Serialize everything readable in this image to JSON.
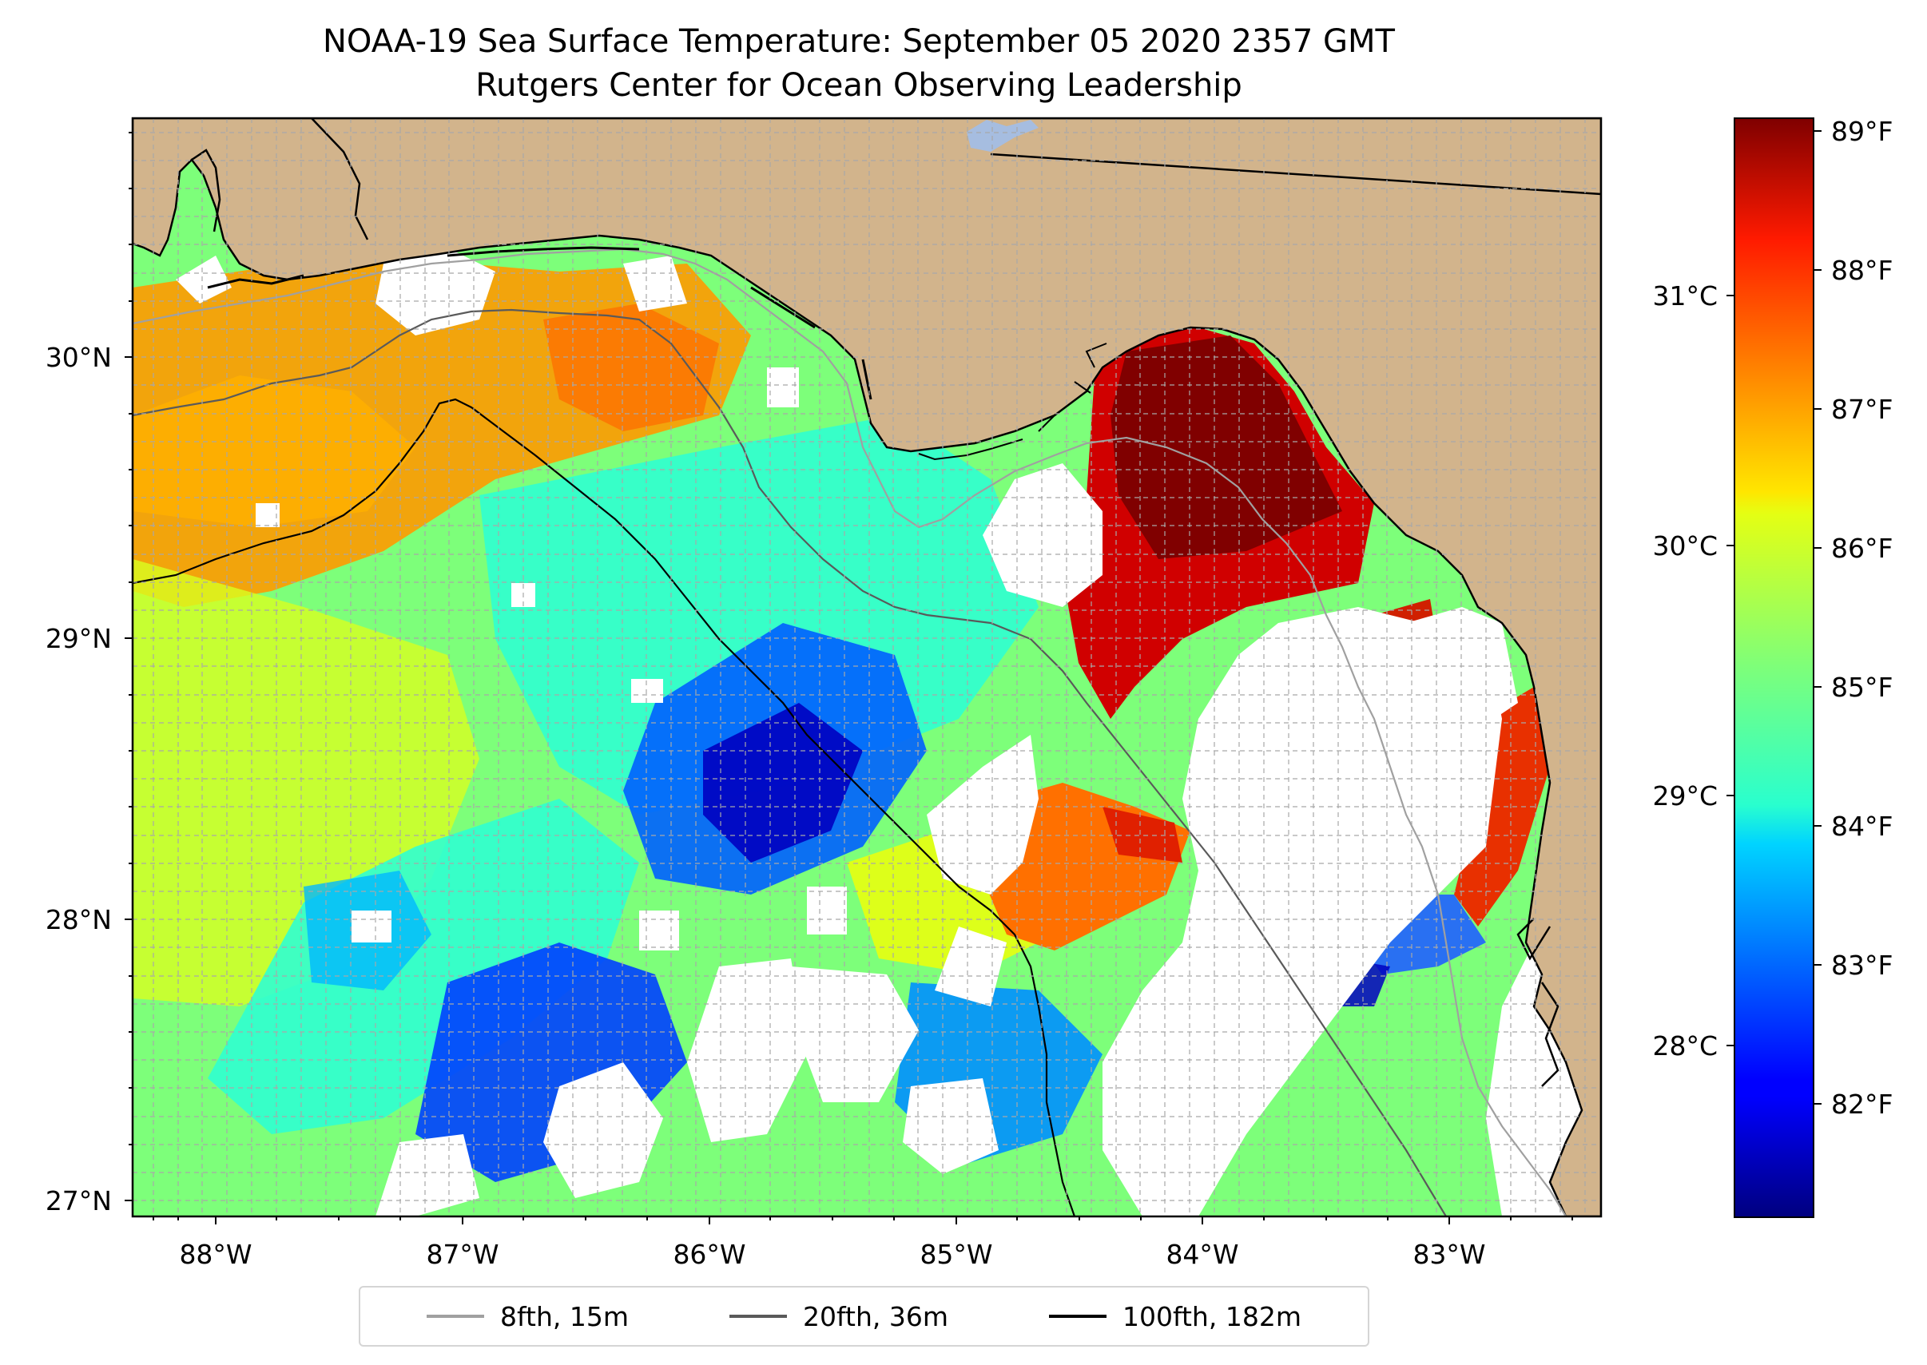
{
  "title": {
    "line1": "NOAA-19 Sea Surface Temperature: September 05 2020 2357 GMT",
    "line2": "Rutgers Center for Ocean Observing Leadership"
  },
  "map": {
    "lon_range": [
      -88.33,
      -82.38
    ],
    "lat_range": [
      26.95,
      30.86
    ],
    "lat_ticks": [
      "27°N",
      "28°N",
      "29°N",
      "30°N"
    ],
    "lon_ticks": [
      "88°W",
      "87°W",
      "86°W",
      "85°W",
      "84°W",
      "83°W"
    ],
    "colors": {
      "land": "#d2b48c",
      "coast": "#000000",
      "river": "#a6bde0",
      "gridline": "#a8a8a8"
    }
  },
  "colorbar": {
    "colormap": "jet",
    "range_F": [
      81.2,
      89.1
    ],
    "fahrenheit_labels": [
      "89°F",
      "88°F",
      "87°F",
      "86°F",
      "85°F",
      "84°F",
      "83°F",
      "82°F"
    ],
    "celsius_labels": [
      "31°C",
      "30°C",
      "29°C",
      "28°C"
    ]
  },
  "legend": {
    "items": [
      {
        "label": "8fth, 15m",
        "color": "#a0a0a0"
      },
      {
        "label": "20fth, 36m",
        "color": "#5a5a5a"
      },
      {
        "label": "100fth, 182m",
        "color": "#000000"
      }
    ]
  }
}
